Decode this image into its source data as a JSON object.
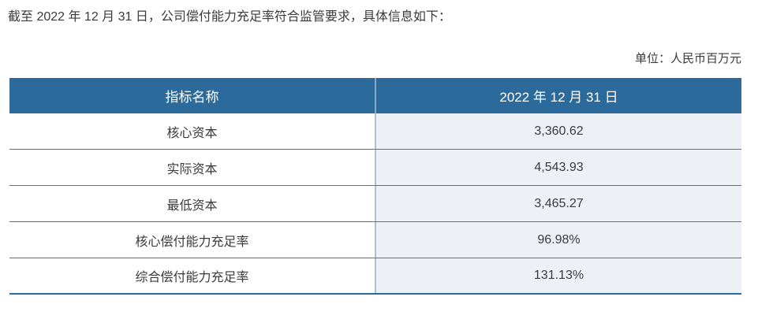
{
  "page": {
    "intro_text": "截至 2022 年 12 月 31 日，公司偿付能力充足率符合监管要求，具体信息如下：",
    "unit_label": "单位：人民币百万元"
  },
  "table": {
    "columns": [
      "指标名称",
      "2022 年 12 月 31 日"
    ],
    "rows": [
      {
        "label": "核心资本",
        "value": "3,360.62"
      },
      {
        "label": "实际资本",
        "value": "4,543.93"
      },
      {
        "label": "最低资本",
        "value": "3,465.27"
      },
      {
        "label": "核心偿付能力充足率",
        "value": "96.98%"
      },
      {
        "label": "综合偿付能力充足率",
        "value": "131.13%"
      }
    ]
  },
  "colors": {
    "header_bg": "#2b6a9b",
    "header_text": "#ffffff",
    "value_bg": "#edf1f6",
    "row_border": "#3f77a9",
    "bottom_border": "#2c6ba0",
    "divider_header": "#87a9c6",
    "divider_light": "#a7c2d8",
    "text": "#3a3a3a"
  }
}
